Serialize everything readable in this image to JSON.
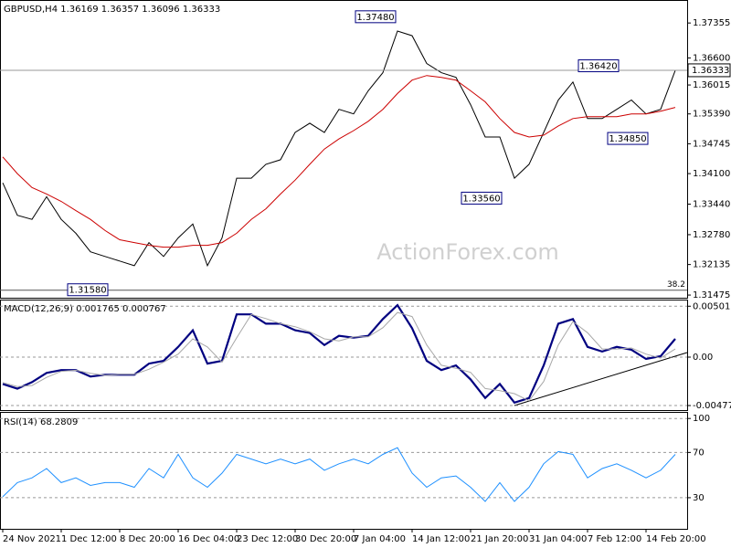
{
  "chart_data": [
    {
      "type": "line",
      "title": "GBPUSD,H4  1.36169 1.36357 1.36096 1.36333",
      "series": [
        {
          "color": "#000000",
          "values": [
            1.339,
            1.332,
            1.3311,
            1.336,
            1.3311,
            1.3281,
            1.3241,
            1.3231,
            1.3221,
            1.3211,
            1.3261,
            1.3231,
            1.3271,
            1.3301,
            1.3211,
            1.3271,
            1.34,
            1.34,
            1.343,
            1.344,
            1.3499,
            1.3519,
            1.3499,
            1.3549,
            1.3539,
            1.3589,
            1.3628,
            1.3718,
            1.3708,
            1.3648,
            1.3628,
            1.3618,
            1.3559,
            1.3489,
            1.3489,
            1.34,
            1.343,
            1.3499,
            1.3569,
            1.3608,
            1.3529,
            1.3529,
            1.3549,
            1.3569,
            1.3539,
            1.3549,
            1.3633
          ]
        },
        {
          "color": "#cc0000",
          "values": [
            1.3446,
            1.341,
            1.338,
            1.3366,
            1.335,
            1.333,
            1.3311,
            1.3287,
            1.3267,
            1.3261,
            1.3255,
            1.3251,
            1.3251,
            1.3255,
            1.3255,
            1.3261,
            1.3281,
            1.3311,
            1.3334,
            1.3366,
            1.3396,
            1.343,
            1.3463,
            1.3485,
            1.3503,
            1.3523,
            1.3549,
            1.3583,
            1.3612,
            1.3622,
            1.3618,
            1.3612,
            1.3589,
            1.3565,
            1.3529,
            1.3499,
            1.3489,
            1.3493,
            1.3513,
            1.3529,
            1.3533,
            1.3533,
            1.3533,
            1.3539,
            1.3539,
            1.3545,
            1.3553
          ]
        }
      ],
      "ylim": [
        1.31417,
        1.37832
      ],
      "yticks": [
        1.37355,
        {
          "value": 1.366,
          "label": "1.36600"
        },
        1.36015,
        {
          "value": 1.3539,
          "label": "1.35390"
        },
        1.34745,
        {
          "value": 1.341,
          "label": "1.34100"
        },
        {
          "value": 1.3344,
          "label": "1.33440"
        },
        {
          "value": 1.3278,
          "label": "1.32780"
        },
        1.32135,
        1.31475
      ],
      "current_price": 1.36333,
      "level_line": {
        "value": 1.3158,
        "label": "38.2"
      },
      "annotations": [
        {
          "value": 1.3748,
          "label": "1.37480"
        },
        {
          "value": 1.3642,
          "label": "1.36420"
        },
        {
          "value": 1.3485,
          "label": "1.34850"
        },
        {
          "value": 1.3356,
          "label": "1.33560"
        },
        {
          "value": 1.3158,
          "label": "1.31580"
        }
      ],
      "watermark": "ActionForex.com"
    },
    {
      "type": "line",
      "title": "MACD(12,26,9) 0.001765 0.000767",
      "series": [
        {
          "color": "#000080",
          "values": [
            -0.00265,
            -0.00311,
            -0.00247,
            -0.00156,
            -0.00128,
            -0.00128,
            -0.00192,
            -0.00174,
            -0.00174,
            -0.00174,
            -0.00064,
            -0.00037,
            0.00101,
            0.00265,
            -0.00064,
            -0.00037,
            0.00421,
            0.00421,
            0.00329,
            0.00329,
            0.00265,
            0.00238,
            0.00119,
            0.0021,
            0.00192,
            0.0021,
            0.00375,
            0.00512,
            0.00284,
            -0.00037,
            -0.00128,
            -0.00082,
            -0.0022,
            -0.00403,
            -0.00265,
            -0.00448,
            -0.00403,
            -0.00082,
            0.00329,
            0.00375,
            0.00101,
            0.00055,
            0.00101,
            0.00073,
            -0.00018,
            9e-05,
            0.0018
          ]
        },
        {
          "color": "#a8a8a8",
          "values": [
            -0.0025,
            -0.0029,
            -0.0028,
            -0.002,
            -0.0014,
            -0.0013,
            -0.0016,
            -0.0018,
            -0.0017,
            -0.0017,
            -0.0012,
            -0.0005,
            0.0003,
            0.0018,
            0.001,
            -0.0005,
            0.0019,
            0.0042,
            0.0038,
            0.0033,
            0.003,
            0.0025,
            0.0018,
            0.0016,
            0.002,
            0.002,
            0.0029,
            0.0044,
            0.004,
            0.0012,
            -0.0008,
            -0.0011,
            -0.0015,
            -0.0031,
            -0.0033,
            -0.0036,
            -0.0043,
            -0.0024,
            0.0012,
            0.0035,
            0.0024,
            0.0008,
            0.0008,
            0.0009,
            0.0003,
            -0.0001,
            0.0008
          ]
        }
      ],
      "ylim": [
        -0.00522,
        0.00558
      ],
      "yticks": [
        0.005015,
        {
          "value": 0,
          "label": "0.00"
        },
        -0.004773
      ]
    },
    {
      "type": "line",
      "title": "RSI(14) 68.2809",
      "categories": [
        "24 Nov 2021",
        null,
        null,
        null,
        "1 Dec 12:00",
        null,
        null,
        null,
        "8 Dec 20:00",
        null,
        null,
        null,
        "16 Dec 04:00",
        null,
        null,
        null,
        "23 Dec 12:00",
        null,
        null,
        null,
        "30 Dec 20:00",
        null,
        null,
        null,
        "7 Jan 04:00",
        null,
        null,
        null,
        "14 Jan 12:00",
        null,
        null,
        null,
        "21 Jan 20:00",
        null,
        null,
        null,
        "31 Jan 04:00",
        null,
        null,
        null,
        "7 Feb 12:00",
        null,
        null,
        null,
        "14 Feb 20:00",
        null,
        null
      ],
      "series": [
        {
          "color": "#1e90ff",
          "values": [
            30.8,
            43.3,
            47.5,
            55.8,
            43.3,
            47.5,
            40.8,
            43.3,
            43.3,
            39.2,
            55.8,
            47.5,
            68.3,
            47.5,
            39.2,
            51.7,
            68.3,
            64.2,
            60,
            64.2,
            60,
            64.2,
            54.2,
            60,
            64.2,
            60,
            68.3,
            74.2,
            51.7,
            39.2,
            47.5,
            49.2,
            39.2,
            26.7,
            43.3,
            26.7,
            39.2,
            60,
            70.8,
            68.3,
            47.5,
            55.8,
            60,
            54.2,
            47.5,
            54.2,
            68.3
          ]
        }
      ],
      "ylim": [
        2.5,
        105
      ],
      "yticks": [
        100,
        70,
        30
      ]
    }
  ]
}
